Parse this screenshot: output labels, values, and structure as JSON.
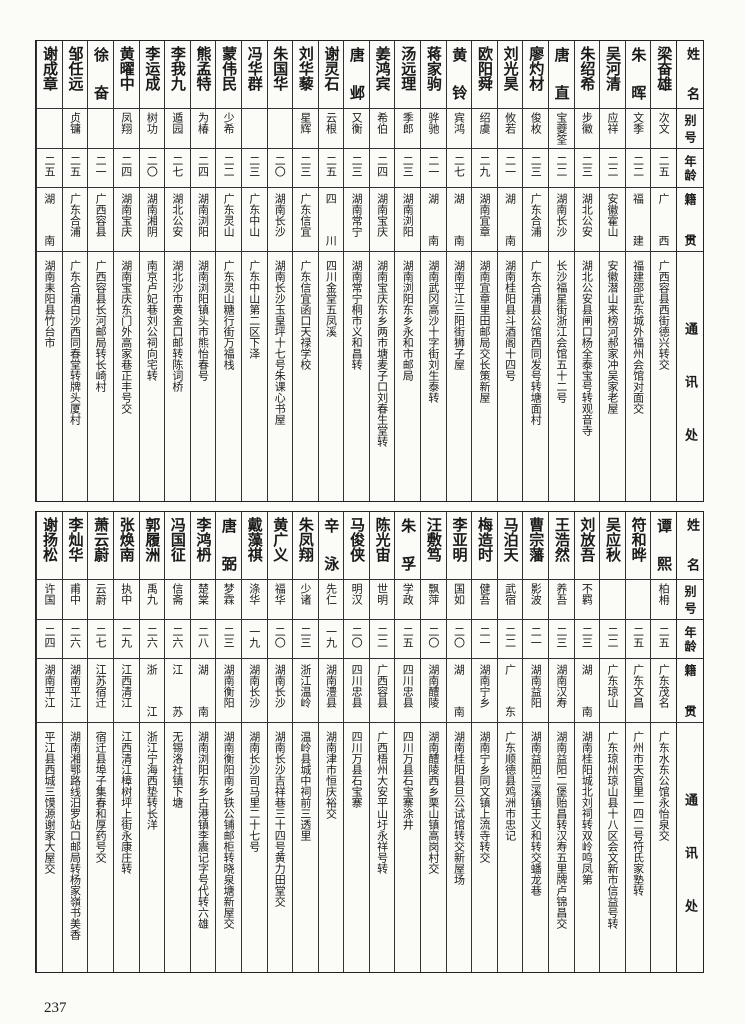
{
  "headers": {
    "name": "姓名",
    "alias": "别号",
    "age": "年龄",
    "native": "籍贯",
    "address": "通讯处"
  },
  "blocks": [
    {
      "rows": [
        {
          "name": "梁奋雄",
          "alias": "次文",
          "age": "二五",
          "native": "广西",
          "address": "广西容县西街德兴转交"
        },
        {
          "name": "朱晖",
          "alias": "文季",
          "age": "二二",
          "native": "福建",
          "address": "福建邵武东城外福州会馆对面交"
        },
        {
          "name": "吴河清",
          "alias": "应祥",
          "age": "二二",
          "native": "安徽霍山",
          "address": "安徽潜山来榜河郝家冲吴家老屋"
        },
        {
          "name": "朱绍希",
          "alias": "步徽",
          "age": "二三",
          "native": "湖北公安",
          "address": "湖北公安县闸口杨全泰宝号转观音寺"
        },
        {
          "name": "唐直",
          "alias": "宝夔筌",
          "age": "二二",
          "native": "湖南长沙",
          "address": "长沙福星街浙江会馆五十二号"
        },
        {
          "name": "廖灼材",
          "alias": "俊枚",
          "age": "二三",
          "native": "广东合浦",
          "address": "广东合浦县公馆西同发号转塘面村"
        },
        {
          "name": "刘光昊",
          "alias": "攸若",
          "age": "二一",
          "native": "湖南",
          "address": "湖南桂阳县斗酒阁十四号"
        },
        {
          "name": "欧阳舜",
          "alias": "绍虞",
          "age": "二九",
          "native": "湖南宜章",
          "address": "湖南宜章里田邮局交长策新屋"
        },
        {
          "name": "黄铃",
          "alias": "宾鸿",
          "age": "二七",
          "native": "湖南",
          "address": "湖南平江三阳街狮子屋"
        },
        {
          "name": "蒋家驹",
          "alias": "骅驰",
          "age": "二一",
          "native": "湖南",
          "address": "湖南武冈高沙十字街刘生泰转"
        },
        {
          "name": "汤远理",
          "alias": "季郎",
          "age": "二三",
          "native": "湖南浏阳",
          "address": "湖南浏阳东乡永和市邮局"
        },
        {
          "name": "姜鸿宾",
          "alias": "希伯",
          "age": "二四",
          "native": "湖南宝庆",
          "address": "湖南宝庆东乡两市塘麦子口刘春生堂转"
        },
        {
          "name": "唐邺",
          "alias": "又衡",
          "age": "二三",
          "native": "湖南常宁",
          "address": "湖南常宁桐市义和昌转"
        },
        {
          "name": "谢灵石",
          "alias": "云根",
          "age": "二五",
          "native": "四川",
          "address": "四川金堂五凤溪"
        },
        {
          "name": "刘华藜",
          "alias": "星辉",
          "age": "二三",
          "native": "广东信宜",
          "address": "广东信宜函口天禄学校"
        },
        {
          "name": "朱国华",
          "alias": "",
          "age": "二〇",
          "native": "湖南长沙",
          "address": "湖南长沙玉皇坪十七号朱课心书屋"
        },
        {
          "name": "冯华群",
          "alias": "",
          "age": "二三",
          "native": "广东中山",
          "address": "广东中山第二区下泽"
        },
        {
          "name": "蒙伟民",
          "alias": "少希",
          "age": "二二",
          "native": "广东灵山",
          "address": "广东灵山糖行街万福栈"
        },
        {
          "name": "熊孟特",
          "alias": "为椿",
          "age": "二四",
          "native": "湖南浏阳",
          "address": "湖南浏阳镇头市熊怡春号"
        },
        {
          "name": "李我九",
          "alias": "遁园",
          "age": "二七",
          "native": "湖北公安",
          "address": "湖北沙市黄金口邮转陈词桥"
        },
        {
          "name": "李运成",
          "alias": "树功",
          "age": "二〇",
          "native": "湖南湘阴",
          "address": "南京卢妃巷刘公祠向宅转"
        },
        {
          "name": "黄曜中",
          "alias": "凤翔",
          "age": "二四",
          "native": "湖南宝庆",
          "address": "湖南宝庆东门外高家巷正丰号交"
        },
        {
          "name": "徐奋",
          "alias": "",
          "age": "二一",
          "native": "广西容县",
          "address": "广西容县长河邮局转长崎村"
        },
        {
          "name": "邹任远",
          "alias": "贞镛",
          "age": "二五",
          "native": "广东合浦",
          "address": "广东合浦白沙西同春堂转牌头厦村"
        },
        {
          "name": "谢成章",
          "alias": "",
          "age": "二五",
          "native": "湖南",
          "address": "湖南耒阳县竹台市"
        }
      ]
    },
    {
      "rows": [
        {
          "name": "谭熙",
          "alias": "柏枏",
          "age": "二五",
          "native": "广东茂名",
          "address": "广东水东公馆永怡泉交"
        },
        {
          "name": "符和晔",
          "alias": "",
          "age": "二五",
          "native": "广东文昌",
          "address": "广州市天官里一四二号符氏家塾转"
        },
        {
          "name": "吴应秋",
          "alias": "",
          "age": "二二",
          "native": "广东琼山",
          "address": "广东琼州琼山县十八区会文新市信益号转"
        },
        {
          "name": "刘放吾",
          "alias": "不羁",
          "age": "二三",
          "native": "湖南",
          "address": "湖南桂阳城北刘祠转双岭鸣凤第"
        },
        {
          "name": "王浩然",
          "alias": "养吾",
          "age": "二三",
          "native": "湖南汉寿",
          "address": "湖南益阳二堡贻昌转汉寿五里牌卢锦昌交"
        },
        {
          "name": "曹宗藩",
          "alias": "影波",
          "age": "二一",
          "native": "湖南益阳",
          "address": "湖南益阳兰溪镇王义和转交蟠龙巷"
        },
        {
          "name": "马泊天",
          "alias": "武宿",
          "age": "二二",
          "native": "广东",
          "address": "广东顺德县鸡洲市忠记"
        },
        {
          "name": "梅造时",
          "alias": "健吾",
          "age": "二一",
          "native": "湖南宁乡",
          "address": "湖南宁乡同文镇上流寺转交"
        },
        {
          "name": "李亚明",
          "alias": "国如",
          "age": "二〇",
          "native": "湖南",
          "address": "湖南桂阳县旦公试馆转交新屋场"
        },
        {
          "name": "汪敷笃",
          "alias": "飘萍",
          "age": "二〇",
          "native": "湖南醴陵",
          "address": "湖南醴陵西乡栗山镇高岗村交"
        },
        {
          "name": "朱孚",
          "alias": "学政",
          "age": "二五",
          "native": "四川忠县",
          "address": "四川万县石宝寨涂井"
        },
        {
          "name": "陈光宙",
          "alias": "世明",
          "age": "二二",
          "native": "广西容县",
          "address": "广西梧州大安平山圩永祥号转"
        },
        {
          "name": "马俊侠",
          "alias": "明汉",
          "age": "二〇",
          "native": "四川忠县",
          "address": "四川万县石宝寨"
        },
        {
          "name": "辛泳",
          "alias": "先仁",
          "age": "一九",
          "native": "湖南澧县",
          "address": "湖南津市恒庆裕交"
        },
        {
          "name": "朱凤翔",
          "alias": "少诸",
          "age": "二三",
          "native": "浙江温岭",
          "address": "温岭县城中祠前三透里"
        },
        {
          "name": "黄广义",
          "alias": "福华",
          "age": "二〇",
          "native": "湖南长沙",
          "address": "湖南长沙吉祥巷三十四号黄力田堂交"
        },
        {
          "name": "戴藻祺",
          "alias": "涤华",
          "age": "一九",
          "native": "湖南长沙",
          "address": "湖南长沙司马里二十七号"
        },
        {
          "name": "唐弼",
          "alias": "梦霖",
          "age": "二三",
          "native": "湖南衡阳",
          "address": "湖南衡阳南乡铁公铺邮柜转晓泉塘新屋交"
        },
        {
          "name": "李鸿枬",
          "alias": "楚棠",
          "age": "二八",
          "native": "湖南",
          "address": "湖南浏阳东乡古港镇李震记字号代转六雄"
        },
        {
          "name": "冯国征",
          "alias": "信斋",
          "age": "二六",
          "native": "江苏",
          "address": "无锡洛社镇下塘"
        },
        {
          "name": "郭履洲",
          "alias": "禹九",
          "age": "二六",
          "native": "浙江",
          "address": "浙江宁海西垫转长洋"
        },
        {
          "name": "张焕南",
          "alias": "执中",
          "age": "二九",
          "native": "江西清江",
          "address": "江西清江樟树坪上街永康庄转"
        },
        {
          "name": "萧云蔚",
          "alias": "云蔚",
          "age": "二七",
          "native": "江苏宿迁",
          "address": "宿迁县埠子集春和厚药号交"
        },
        {
          "name": "李灿华",
          "alias": "甫中",
          "age": "二六",
          "native": "湖南平江",
          "address": "湖南湘鄂路线汨罗站口邮局转杨家嶺书美香"
        },
        {
          "name": "谢扬松",
          "alias": "许国",
          "age": "二四",
          "native": "湖南平江",
          "address": "平江县西城三馍源谢家大屋交"
        }
      ]
    }
  ],
  "page_number": "237"
}
